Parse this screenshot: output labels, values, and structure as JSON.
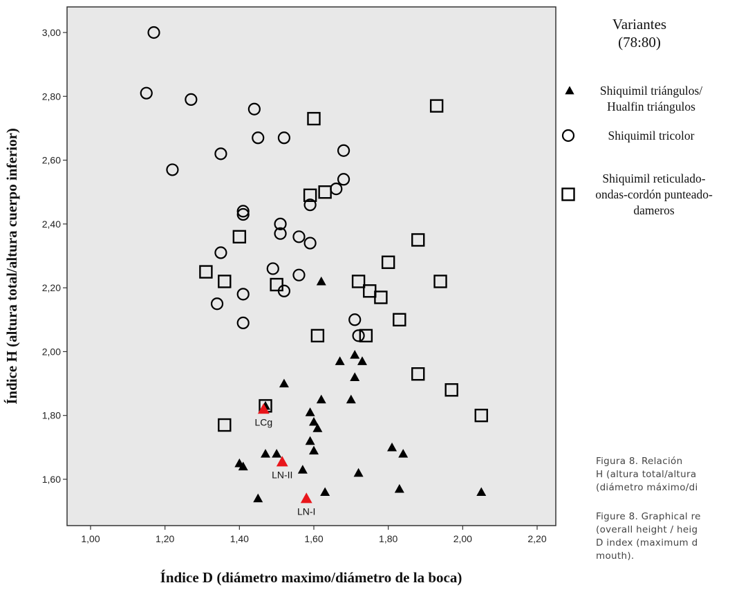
{
  "chart_data": {
    "type": "scatter",
    "xlabel": "Índice D (diámetro maximo/diámetro de la boca)",
    "ylabel": "Índice H (altura total/altura cuerpo inferior)",
    "xlim": [
      1.0,
      2.3
    ],
    "ylim": [
      1.46,
      3.1
    ],
    "xticks": [
      "1,00",
      "1,20",
      "1,40",
      "1,60",
      "1,80",
      "2,00",
      "2,20"
    ],
    "yticks": [
      "1,60",
      "1,80",
      "2,00",
      "2,20",
      "2,40",
      "2,60",
      "2,80",
      "3,00"
    ],
    "grid": false,
    "background_color": "#e8e8e8",
    "legend_position": "right",
    "legend_title": [
      "Variantes",
      "(78:80)"
    ],
    "series": [
      {
        "name": "Shiquimil triángulos/ Hualfin triángulos",
        "label_lines": [
          "Shiquimil triángulos/",
          "Hualfin triángulos"
        ],
        "marker": "triangle",
        "color": "#000000",
        "points": [
          [
            1.62,
            2.22
          ],
          [
            1.67,
            1.97
          ],
          [
            1.71,
            1.99
          ],
          [
            1.73,
            1.97
          ],
          [
            1.71,
            1.92
          ],
          [
            1.52,
            1.9
          ],
          [
            1.62,
            1.85
          ],
          [
            1.7,
            1.85
          ],
          [
            1.47,
            1.83
          ],
          [
            1.59,
            1.81
          ],
          [
            1.6,
            1.78
          ],
          [
            1.61,
            1.76
          ],
          [
            1.59,
            1.72
          ],
          [
            1.6,
            1.69
          ],
          [
            1.81,
            1.7
          ],
          [
            1.84,
            1.68
          ],
          [
            1.47,
            1.68
          ],
          [
            1.5,
            1.68
          ],
          [
            1.4,
            1.65
          ],
          [
            1.41,
            1.64
          ],
          [
            1.57,
            1.63
          ],
          [
            1.72,
            1.62
          ],
          [
            1.45,
            1.54
          ],
          [
            1.63,
            1.56
          ],
          [
            1.83,
            1.57
          ],
          [
            2.05,
            1.56
          ]
        ]
      },
      {
        "name": "Shiquimil tricolor",
        "label_lines": [
          "Shiquimil tricolor"
        ],
        "marker": "circle",
        "color": "#000000",
        "points": [
          [
            1.17,
            3.0
          ],
          [
            1.15,
            2.81
          ],
          [
            1.27,
            2.79
          ],
          [
            1.44,
            2.76
          ],
          [
            1.45,
            2.67
          ],
          [
            1.52,
            2.67
          ],
          [
            1.35,
            2.62
          ],
          [
            1.68,
            2.63
          ],
          [
            1.22,
            2.57
          ],
          [
            1.68,
            2.54
          ],
          [
            1.66,
            2.51
          ],
          [
            1.59,
            2.46
          ],
          [
            1.41,
            2.44
          ],
          [
            1.41,
            2.43
          ],
          [
            1.51,
            2.4
          ],
          [
            1.51,
            2.37
          ],
          [
            1.56,
            2.36
          ],
          [
            1.59,
            2.34
          ],
          [
            1.35,
            2.31
          ],
          [
            1.49,
            2.26
          ],
          [
            1.56,
            2.24
          ],
          [
            1.41,
            2.18
          ],
          [
            1.52,
            2.19
          ],
          [
            1.34,
            2.15
          ],
          [
            1.71,
            2.1
          ],
          [
            1.41,
            2.09
          ],
          [
            1.72,
            2.05
          ]
        ]
      },
      {
        "name": "Shiquimil reticulado-ondas-cordón punteado-dameros",
        "label_lines": [
          "Shiquimil reticulado-",
          "ondas-cordón punteado-",
          "dameros"
        ],
        "marker": "square",
        "color": "#000000",
        "points": [
          [
            1.6,
            2.73
          ],
          [
            1.93,
            2.77
          ],
          [
            1.59,
            2.49
          ],
          [
            1.63,
            2.5
          ],
          [
            1.4,
            2.36
          ],
          [
            1.88,
            2.35
          ],
          [
            1.8,
            2.28
          ],
          [
            1.31,
            2.25
          ],
          [
            1.36,
            2.22
          ],
          [
            1.5,
            2.21
          ],
          [
            1.72,
            2.22
          ],
          [
            1.75,
            2.19
          ],
          [
            1.94,
            2.22
          ],
          [
            1.78,
            2.17
          ],
          [
            1.83,
            2.1
          ],
          [
            1.61,
            2.05
          ],
          [
            1.74,
            2.05
          ],
          [
            1.88,
            1.93
          ],
          [
            1.97,
            1.88
          ],
          [
            1.47,
            1.83
          ],
          [
            2.05,
            1.8
          ],
          [
            1.36,
            1.77
          ]
        ]
      }
    ],
    "highlighted": [
      {
        "label": "LCg",
        "x": 1.465,
        "y": 1.82,
        "color": "#e8161b",
        "marker": "triangle"
      },
      {
        "label": "LN-II",
        "x": 1.515,
        "y": 1.655,
        "color": "#e8161b",
        "marker": "triangle"
      },
      {
        "label": "LN-I",
        "x": 1.58,
        "y": 1.54,
        "color": "#e8161b",
        "marker": "triangle"
      }
    ]
  },
  "caption": {
    "spanish_lines": [
      "Figura 8. Relación",
      "H (altura total/altura",
      "(diámetro máximo/di"
    ],
    "english_lines": [
      "Figure 8. Graphical re",
      "(overall height / heig",
      "D index (maximum d",
      "mouth)."
    ]
  }
}
